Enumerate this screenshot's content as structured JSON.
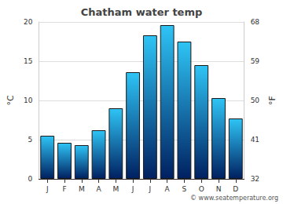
{
  "chart_data": {
    "type": "bar",
    "title": "Chatham water temp",
    "categories": [
      "J",
      "F",
      "M",
      "A",
      "M",
      "J",
      "J",
      "A",
      "S",
      "O",
      "N",
      "D"
    ],
    "values": [
      5.5,
      4.6,
      4.3,
      6.2,
      9.0,
      13.6,
      18.3,
      19.6,
      17.5,
      14.5,
      10.3,
      7.7
    ],
    "color": "#2ec4f5",
    "y_label": "°C",
    "ylim": [
      0,
      20
    ],
    "yticks": [
      0,
      5,
      10,
      15,
      20
    ],
    "y2_label": "°F",
    "y2lim": [
      32,
      68
    ],
    "y2ticks": [
      32,
      41,
      50,
      59,
      68
    ],
    "source": "© www.seatemperature.org",
    "grid": true
  }
}
